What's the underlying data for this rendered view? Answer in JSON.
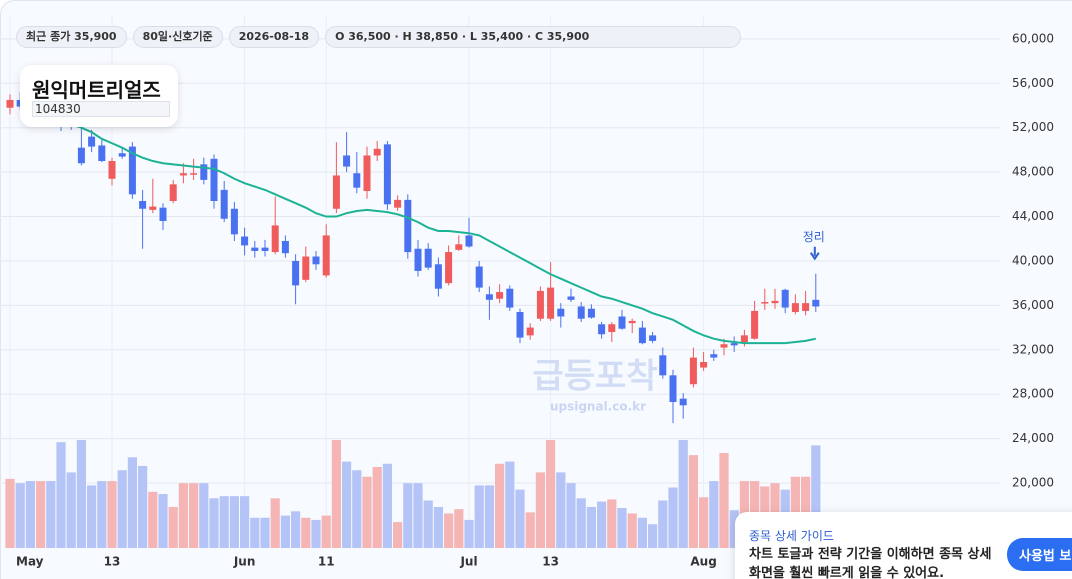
{
  "chart_data": {
    "type": "candlestick",
    "title": "원익머트리얼즈",
    "subtitle": "104830",
    "info_chips": [
      "최근 종가 35,900",
      "80일·신호기준",
      "2026-08-18",
      "O 36,500 · H 38,850 · L 35,400 · C 35,900"
    ],
    "watermark": [
      "급등포착",
      "upsignal.co.kr"
    ],
    "annotation": "정리",
    "categories": [
      "May",
      null,
      null,
      null,
      null,
      null,
      null,
      null,
      null,
      null,
      "13",
      null,
      null,
      null,
      null,
      null,
      null,
      null,
      null,
      null,
      null,
      null,
      null,
      "Jun",
      null,
      null,
      null,
      null,
      null,
      null,
      null,
      "11",
      null,
      null,
      null,
      null,
      null,
      null,
      null,
      null,
      null,
      null,
      null,
      null,
      null,
      "Jul",
      null,
      null,
      null,
      null,
      null,
      null,
      null,
      "13",
      null,
      null,
      null,
      null,
      null,
      null,
      null,
      null,
      null,
      null,
      null,
      null,
      null,
      null,
      "Aug",
      null,
      null,
      null,
      null,
      null,
      null,
      null,
      null,
      null,
      null,
      null
    ],
    "ohlc": [
      [
        53800,
        55000,
        53200,
        54500
      ],
      [
        54500,
        55200,
        53600,
        53900
      ],
      [
        53900,
        54300,
        52800,
        53300
      ],
      [
        53300,
        54100,
        52700,
        53800
      ],
      [
        53800,
        54200,
        52600,
        52900
      ],
      [
        52900,
        53400,
        51700,
        52100
      ],
      [
        52500,
        53200,
        51800,
        52300
      ],
      [
        50200,
        52000,
        48600,
        48800
      ],
      [
        51200,
        51800,
        49800,
        50300
      ],
      [
        50400,
        51000,
        48900,
        49000
      ],
      [
        47400,
        49300,
        46800,
        49000
      ],
      [
        49700,
        50200,
        49200,
        49400
      ],
      [
        50300,
        50700,
        45600,
        46000
      ],
      [
        45400,
        46400,
        41100,
        44700
      ],
      [
        44600,
        47400,
        44300,
        44900
      ],
      [
        44800,
        45200,
        42800,
        43600
      ],
      [
        45400,
        47300,
        45200,
        46900
      ],
      [
        47700,
        48800,
        47000,
        47900
      ],
      [
        47800,
        49200,
        47300,
        47900
      ],
      [
        48700,
        49300,
        46900,
        47300
      ],
      [
        49200,
        49600,
        44700,
        45400
      ],
      [
        46400,
        47200,
        43500,
        43800
      ],
      [
        44700,
        45300,
        41800,
        42400
      ],
      [
        42200,
        43000,
        40500,
        41400
      ],
      [
        41200,
        41800,
        40300,
        40900
      ],
      [
        41200,
        41900,
        40400,
        40900
      ],
      [
        40800,
        45800,
        40600,
        43200
      ],
      [
        41800,
        42300,
        40300,
        40700
      ],
      [
        40000,
        40600,
        36100,
        37800
      ],
      [
        38300,
        41300,
        38100,
        40400
      ],
      [
        40400,
        40900,
        39200,
        39700
      ],
      [
        38700,
        43300,
        38500,
        42300
      ],
      [
        44700,
        50700,
        44300,
        47700
      ],
      [
        49500,
        51600,
        48000,
        48500
      ],
      [
        47900,
        49800,
        46100,
        46600
      ],
      [
        46300,
        50300,
        45600,
        49500
      ],
      [
        49500,
        50800,
        49000,
        50100
      ],
      [
        50500,
        50800,
        44600,
        45100
      ],
      [
        44800,
        45900,
        44500,
        45500
      ],
      [
        45500,
        46000,
        40200,
        40800
      ],
      [
        41100,
        41900,
        38600,
        39100
      ],
      [
        41100,
        41600,
        39200,
        39400
      ],
      [
        39700,
        40300,
        36800,
        37500
      ],
      [
        38000,
        41400,
        37800,
        40800
      ],
      [
        41000,
        42300,
        40900,
        41500
      ],
      [
        42300,
        43900,
        41200,
        41300
      ],
      [
        39500,
        40000,
        37200,
        37600
      ],
      [
        37000,
        37700,
        34700,
        36500
      ],
      [
        36600,
        37900,
        36200,
        37200
      ],
      [
        37500,
        37800,
        35500,
        35800
      ],
      [
        35400,
        35700,
        32600,
        33100
      ],
      [
        33300,
        34400,
        32900,
        34000
      ],
      [
        34800,
        37700,
        34600,
        37300
      ],
      [
        34800,
        39900,
        34600,
        37600
      ],
      [
        35700,
        36200,
        34000,
        35000
      ],
      [
        36800,
        37500,
        36300,
        36500
      ],
      [
        35900,
        36300,
        34500,
        34800
      ],
      [
        35700,
        36100,
        34800,
        34900
      ],
      [
        34300,
        34500,
        33000,
        33400
      ],
      [
        33600,
        34500,
        32700,
        34300
      ],
      [
        35000,
        35600,
        33800,
        33900
      ],
      [
        34400,
        34800,
        33500,
        34600
      ],
      [
        34000,
        34600,
        32500,
        32600
      ],
      [
        33300,
        33600,
        32600,
        32800
      ],
      [
        31500,
        32200,
        29400,
        29700
      ],
      [
        29700,
        30200,
        25400,
        27300
      ],
      [
        27600,
        28100,
        25800,
        27000
      ],
      [
        28900,
        32200,
        28600,
        31300
      ],
      [
        30400,
        31800,
        30100,
        30900
      ],
      [
        31600,
        32000,
        31000,
        31300
      ],
      [
        32200,
        33000,
        31500,
        32500
      ],
      [
        32600,
        33200,
        31800,
        32400
      ],
      [
        32700,
        33800,
        32300,
        33300
      ],
      [
        33000,
        36400,
        32900,
        35500
      ],
      [
        36200,
        37500,
        35600,
        36300
      ],
      [
        36200,
        37500,
        35700,
        36400
      ],
      [
        37400,
        37500,
        35300,
        35800
      ],
      [
        35400,
        37000,
        35200,
        36200
      ],
      [
        35500,
        37300,
        35100,
        36200
      ],
      [
        36500,
        38850,
        35400,
        35900
      ]
    ],
    "volume": [
      64,
      60,
      62,
      62,
      62,
      98,
      70,
      100,
      58,
      62,
      62,
      72,
      84,
      76,
      52,
      50,
      38,
      60,
      60,
      60,
      46,
      48,
      48,
      48,
      28,
      28,
      46,
      30,
      34,
      28,
      26,
      30,
      100,
      80,
      72,
      66,
      75,
      78,
      24,
      60,
      60,
      44,
      38,
      32,
      36,
      26,
      58,
      58,
      78,
      80,
      54,
      33,
      70,
      100,
      70,
      60,
      46,
      38,
      43,
      45,
      37,
      32,
      28,
      22,
      44,
      56,
      100,
      86,
      47,
      62,
      88,
      35,
      62,
      62,
      57,
      60,
      54,
      66,
      66,
      95
    ],
    "ma": [
      null,
      54600,
      54200,
      53700,
      53200,
      52700,
      52300,
      52000,
      51600,
      51000,
      50600,
      50200,
      49700,
      49300,
      49000,
      48800,
      48700,
      48600,
      48500,
      48400,
      48300,
      47900,
      47400,
      47000,
      46700,
      46400,
      46000,
      45600,
      45200,
      44800,
      44300,
      44000,
      44000,
      44300,
      44500,
      44600,
      44500,
      44400,
      44200,
      43900,
      43500,
      43000,
      42700,
      42700,
      42600,
      42500,
      42300,
      41800,
      41300,
      40800,
      40300,
      39800,
      39300,
      38800,
      38400,
      38000,
      37600,
      37200,
      36800,
      36600,
      36300,
      36000,
      35700,
      35300,
      35000,
      34700,
      34200,
      33700,
      33300,
      33000,
      32800,
      32700,
      32600,
      32600,
      32600,
      32600,
      32600,
      32700,
      32800,
      33000
    ],
    "colors": {
      "up": "#f05b5b",
      "down": "#4a72f0",
      "up_volume": "#f6b5b5",
      "down_volume": "#b5c4f6",
      "ma": "#1cb394"
    },
    "ylim": [
      14150,
      62150
    ],
    "yticks": [
      {
        "value": 20000,
        "label": "20,000"
      },
      {
        "value": 24000,
        "label": "24,000"
      },
      {
        "value": 28000,
        "label": "28,000"
      },
      {
        "value": 32000,
        "label": "32,000"
      },
      {
        "value": 36000,
        "label": "36,000"
      },
      {
        "value": 40000,
        "label": "40,000"
      },
      {
        "value": 44000,
        "label": "44,000"
      },
      {
        "value": 48000,
        "label": "48,000"
      },
      {
        "value": 52000,
        "label": "52,000"
      },
      {
        "value": 56000,
        "label": "56,000"
      },
      {
        "value": 60000,
        "label": "60,000"
      }
    ],
    "grid": true
  },
  "guide": {
    "title": "종목 상세 가이드",
    "text": [
      "차트 토글과 전략 기간을 이해하면 종목 상세",
      "화면을 훨씬 빠르게 읽을 수 있어요."
    ],
    "button": "사용법 보기"
  }
}
